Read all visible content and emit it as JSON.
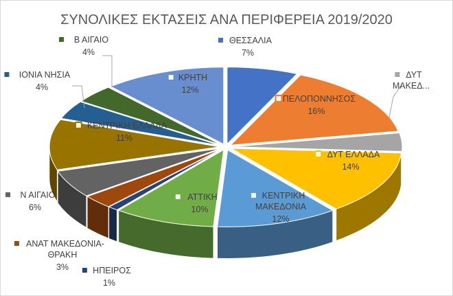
{
  "chart_data": {
    "type": "pie",
    "title": "ΣΥΝΟΛΙΚΕΣ ΕΚΤΑΣΕΙΣ ΑΝΑ ΠΕΡΙΦΕΡΕΙΑ  2019/2020",
    "style": "3d-exploded",
    "slices": [
      {
        "label": "ΘΕΣΣΑΛΙΑ",
        "value": 7,
        "percent_label": "7%",
        "color": "#4472c4"
      },
      {
        "label": "ΠΕΛΟΠΟΝΝΗΣΟΣ",
        "value": 16,
        "percent_label": "16%",
        "color": "#ed7d31"
      },
      {
        "label": "ΔΥΤ ΜΑΚΕΔ...",
        "value": 4,
        "percent_label": "",
        "color": "#a5a5a5"
      },
      {
        "label": "ΔΥΤ ΕΛΛΑΔΑ",
        "value": 14,
        "percent_label": "14%",
        "color": "#ffc000"
      },
      {
        "label": "ΚΕΝΤΡΙΚΗ ΜΑΚΕΔΟΝΙΑ",
        "value": 12,
        "percent_label": "12%",
        "color": "#5b9bd5"
      },
      {
        "label": "ΑΤΤΙΚΗ",
        "value": 10,
        "percent_label": "10%",
        "color": "#70ad47"
      },
      {
        "label": "ΗΠΕΙΡΟΣ",
        "value": 1,
        "percent_label": "1%",
        "color": "#264478"
      },
      {
        "label": "ΑΝΑΤ ΜΑΚΕΔΟΝΙΑ-ΘΡΑΚΗ",
        "value": 3,
        "percent_label": "3%",
        "color": "#9e480e"
      },
      {
        "label": "Ν ΑΙΓΑΙΟ",
        "value": 6,
        "percent_label": "6%",
        "color": "#636363"
      },
      {
        "label": "ΚΕΝΤΡΙΚΗ ΕΛΛΑΔΑ",
        "value": 11,
        "percent_label": "11%",
        "color": "#997300"
      },
      {
        "label": "ΙΟΝΙΑ ΝΗΣΙΑ",
        "value": 4,
        "percent_label": "4%",
        "color": "#255e91"
      },
      {
        "label": "Β ΑΙΓΑΙΟ",
        "value": 4,
        "percent_label": "4%",
        "color": "#43682b"
      },
      {
        "label": "ΚΡΗΤΗ",
        "value": 12,
        "percent_label": "12%",
        "color": "#698ed0"
      }
    ],
    "legend": "none",
    "data_labels": "category-and-percent"
  }
}
